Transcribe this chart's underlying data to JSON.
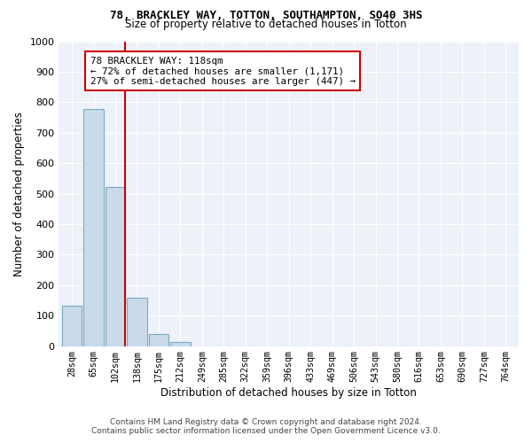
{
  "title1": "78, BRACKLEY WAY, TOTTON, SOUTHAMPTON, SO40 3HS",
  "title2": "Size of property relative to detached houses in Totton",
  "xlabel": "Distribution of detached houses by size in Totton",
  "ylabel": "Number of detached properties",
  "footer1": "Contains HM Land Registry data © Crown copyright and database right 2024.",
  "footer2": "Contains public sector information licensed under the Open Government Licence v3.0.",
  "bin_labels": [
    "28sqm",
    "65sqm",
    "102sqm",
    "138sqm",
    "175sqm",
    "212sqm",
    "249sqm",
    "285sqm",
    "322sqm",
    "359sqm",
    "396sqm",
    "433sqm",
    "469sqm",
    "506sqm",
    "543sqm",
    "580sqm",
    "616sqm",
    "653sqm",
    "690sqm",
    "727sqm",
    "764sqm"
  ],
  "bar_values": [
    133,
    778,
    523,
    158,
    40,
    12,
    0,
    0,
    0,
    0,
    0,
    0,
    0,
    0,
    0,
    0,
    0,
    0,
    0,
    0,
    0
  ],
  "bar_color": "#c9daea",
  "bar_edge_color": "#7aaabf",
  "background_color": "#edf2f9",
  "grid_color": "#ffffff",
  "property_line_label": "78 BRACKLEY WAY: 118sqm",
  "annotation_line1": "← 72% of detached houses are smaller (1,171)",
  "annotation_line2": "27% of semi-detached houses are larger (447) →",
  "red_line_color": "#cc0000",
  "annotation_box_color": "#ffffff",
  "annotation_box_edge": "#cc0000",
  "ylim": [
    0,
    1000
  ],
  "yticks": [
    0,
    100,
    200,
    300,
    400,
    500,
    600,
    700,
    800,
    900,
    1000
  ],
  "bin_width": 37,
  "prop_bin_index": 2
}
